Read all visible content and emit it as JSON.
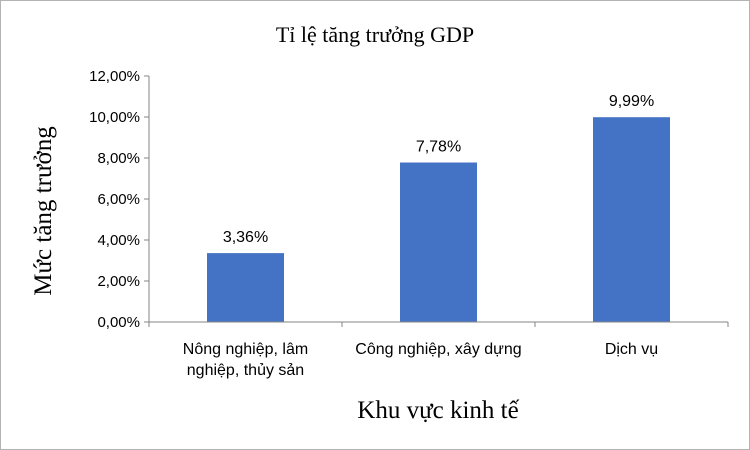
{
  "chart_data": {
    "type": "bar",
    "title": "Tỉ lệ tăng trưởng GDP",
    "xlabel": "Khu vực kinh tế",
    "ylabel": "Mức tăng trưởng",
    "categories": [
      [
        "Nông nghiệp, lâm",
        "nghiệp, thủy sản"
      ],
      [
        "Công nghiệp, xây dựng"
      ],
      [
        "Dịch vụ"
      ]
    ],
    "values": [
      3.36,
      7.78,
      9.99
    ],
    "data_labels": [
      "3,36%",
      "7,78%",
      "9,99%"
    ],
    "ylim": [
      0,
      12
    ],
    "y_ticks": [
      0,
      2,
      4,
      6,
      8,
      10,
      12
    ],
    "y_tick_labels": [
      "0,00%",
      "2,00%",
      "4,00%",
      "6,00%",
      "8,00%",
      "10,00%",
      "12,00%"
    ],
    "grid": false,
    "bar_color": "#4472C4",
    "axis_color": "#868686"
  }
}
